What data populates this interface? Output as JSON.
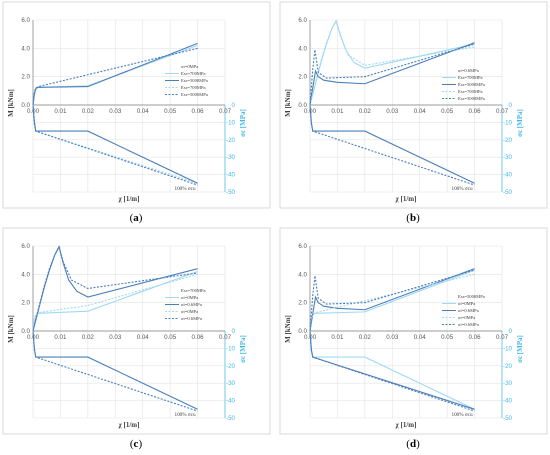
{
  "chart_data": [
    {
      "type": "line",
      "panel_label_open": "(",
      "panel_label": "a",
      "panel_label_close": ")",
      "xlabel": "χ [1/m]",
      "ylabel": "M [kNm]",
      "ylabel_right": "σc [MPa]",
      "xlim": [
        0,
        0.07
      ],
      "ylim": [
        0,
        6
      ],
      "ylim_right": [
        -50,
        0
      ],
      "x_ticks": [
        "0.00",
        "0.01",
        "0.02",
        "0.03",
        "0.04",
        "0.05",
        "0.06",
        "0.07"
      ],
      "y_ticks": [
        "0.0",
        "2.0",
        "4.0",
        "6.0"
      ],
      "y_right_ticks": [
        "0",
        "-10",
        "-20",
        "-30",
        "-40",
        "-50"
      ],
      "annotation": "100% σcu",
      "legend_title": "σt=0MPa",
      "series": [
        {
          "name": "Ess=700MPa",
          "color": "#9fd9f5",
          "dash": "",
          "axis": "left",
          "x": [
            0,
            0.0005,
            0.001,
            0.0015,
            0.002,
            0.02,
            0.06
          ],
          "y": [
            0,
            0.7,
            1.1,
            1.2,
            1.25,
            1.35,
            4.2
          ]
        },
        {
          "name": "Ess=5000MPa",
          "color": "#4a7ebb",
          "dash": "",
          "axis": "left",
          "x": [
            0,
            0.0005,
            0.001,
            0.0015,
            0.002,
            0.02,
            0.06
          ],
          "y": [
            0,
            0.8,
            1.15,
            1.22,
            1.25,
            1.3,
            4.35
          ]
        },
        {
          "name": "Ess=700MPa",
          "color": "#9fd9f5",
          "dash": "2,1.5",
          "axis": "right",
          "x": [
            0,
            0.001,
            0.06
          ],
          "y": [
            -0.5,
            -15,
            -45
          ]
        },
        {
          "name": "Ess=5000MPa",
          "color": "#4a7ebb",
          "dash": "2,1.5",
          "axis": "left",
          "x": [
            0,
            0.0005,
            0.001,
            0.002,
            0.06
          ],
          "y": [
            0,
            0.9,
            1.2,
            1.3,
            4.0
          ]
        },
        {
          "name": "",
          "color": "#4a7ebb",
          "dash": "",
          "axis": "right",
          "x": [
            0,
            0.0005,
            0.001,
            0.02,
            0.06
          ],
          "y": [
            -0.3,
            -10,
            -15,
            -15,
            -45
          ]
        },
        {
          "name": "",
          "color": "#4a7ebb",
          "dash": "2,1.5",
          "axis": "right",
          "x": [
            0,
            0.0005,
            0.001,
            0.06
          ],
          "y": [
            -0.3,
            -11,
            -15,
            -46
          ]
        }
      ]
    },
    {
      "type": "line",
      "panel_label_open": "(",
      "panel_label": "b",
      "panel_label_close": ")",
      "xlabel": "χ [1/m]",
      "ylabel": "M [kNm]",
      "ylabel_right": "σc [MPa]",
      "xlim": [
        0,
        0.07
      ],
      "ylim": [
        0,
        6
      ],
      "ylim_right": [
        -50,
        0
      ],
      "x_ticks": [
        "0.00",
        "0.01",
        "0.02",
        "0.03",
        "0.04",
        "0.05",
        "0.06",
        "0.07"
      ],
      "y_ticks": [
        "0.0",
        "2.0",
        "4.0",
        "6.0"
      ],
      "y_right_ticks": [
        "0",
        "-10",
        "-20",
        "-30",
        "-40",
        "-50"
      ],
      "annotation": "100% σcu",
      "legend_title": "σt=0.6MPa",
      "series": [
        {
          "name": "Ess=700MPa",
          "color": "#9fd9f5",
          "dash": "",
          "axis": "left",
          "x": [
            0,
            0.002,
            0.004,
            0.006,
            0.008,
            0.0095,
            0.011,
            0.013,
            0.016,
            0.02,
            0.06
          ],
          "y": [
            0,
            1.5,
            3.0,
            4.3,
            5.4,
            5.95,
            5.0,
            3.9,
            3.0,
            2.6,
            4.3
          ]
        },
        {
          "name": "Ess=5000MPa",
          "color": "#4a7ebb",
          "dash": "",
          "axis": "left",
          "x": [
            0,
            0.001,
            0.002,
            0.003,
            0.005,
            0.01,
            0.02,
            0.06
          ],
          "y": [
            0,
            1.2,
            2.4,
            2.0,
            1.75,
            1.6,
            1.5,
            4.4
          ]
        },
        {
          "name": "Ess=700MPa",
          "color": "#9fd9f5",
          "dash": "2,1.5",
          "axis": "left",
          "x": [
            0,
            0.002,
            0.004,
            0.006,
            0.008,
            0.0095,
            0.011,
            0.014,
            0.02,
            0.06
          ],
          "y": [
            0,
            1.6,
            3.1,
            4.4,
            5.4,
            5.9,
            4.9,
            3.5,
            2.8,
            4.1
          ]
        },
        {
          "name": "Ess=5000MPa",
          "color": "#4a7ebb",
          "dash": "2,1.5",
          "axis": "left",
          "x": [
            0,
            0.001,
            0.0018,
            0.003,
            0.006,
            0.02,
            0.06
          ],
          "y": [
            0,
            2.5,
            3.9,
            2.3,
            1.9,
            2.0,
            4.3
          ]
        },
        {
          "name": "",
          "color": "#4a7ebb",
          "dash": "",
          "axis": "right",
          "x": [
            0,
            0.0005,
            0.001,
            0.02,
            0.06
          ],
          "y": [
            -0.3,
            -10,
            -15,
            -15,
            -45
          ]
        },
        {
          "name": "",
          "color": "#4a7ebb",
          "dash": "2,1.5",
          "axis": "right",
          "x": [
            0,
            0.0005,
            0.001,
            0.06
          ],
          "y": [
            -0.3,
            -11,
            -15,
            -46
          ]
        }
      ]
    },
    {
      "type": "line",
      "panel_label_open": "(",
      "panel_label": "c",
      "panel_label_close": ")",
      "xlabel": "χ [1/m]",
      "ylabel": "M [kNm]",
      "ylabel_right": "σc [MPa]",
      "xlim": [
        0,
        0.07
      ],
      "ylim": [
        0,
        6
      ],
      "ylim_right": [
        -50,
        0
      ],
      "x_ticks": [
        "0.00",
        "0.01",
        "0.02",
        "0.03",
        "0.04",
        "0.05",
        "0.06",
        "0.07"
      ],
      "y_ticks": [
        "0.0",
        "2.0",
        "4.0",
        "6.0"
      ],
      "y_right_ticks": [
        "0",
        "-10",
        "-20",
        "-30",
        "-40",
        "-50"
      ],
      "annotation": "100% σcu",
      "legend_title": "Ess=700MPa",
      "series": [
        {
          "name": "σt=0MPa",
          "color": "#9fd9f5",
          "dash": "",
          "axis": "left",
          "x": [
            0,
            0.0005,
            0.001,
            0.002,
            0.02,
            0.06
          ],
          "y": [
            0,
            0.7,
            1.1,
            1.25,
            1.4,
            4.2
          ]
        },
        {
          "name": "σt=0.6MPa",
          "color": "#4a7ebb",
          "dash": "",
          "axis": "left",
          "x": [
            0,
            0.002,
            0.004,
            0.006,
            0.008,
            0.0095,
            0.011,
            0.013,
            0.016,
            0.02,
            0.06
          ],
          "y": [
            0,
            1.5,
            3.0,
            4.3,
            5.4,
            5.95,
            4.8,
            3.6,
            2.8,
            2.4,
            4.4
          ]
        },
        {
          "name": "σt=0MPa",
          "color": "#9fd9f5",
          "dash": "2,1.5",
          "axis": "left",
          "x": [
            0,
            0.0005,
            0.001,
            0.002,
            0.02,
            0.06
          ],
          "y": [
            0,
            0.8,
            1.15,
            1.3,
            1.8,
            4.0
          ]
        },
        {
          "name": "σt=0.6MPa",
          "color": "#4a7ebb",
          "dash": "2,1.5",
          "axis": "left",
          "x": [
            0,
            0.002,
            0.004,
            0.006,
            0.008,
            0.0095,
            0.011,
            0.014,
            0.02,
            0.06
          ],
          "y": [
            0,
            1.6,
            3.1,
            4.4,
            5.4,
            5.9,
            4.9,
            3.6,
            3.0,
            4.1
          ]
        },
        {
          "name": "",
          "color": "#4a7ebb",
          "dash": "",
          "axis": "right",
          "x": [
            0,
            0.0005,
            0.001,
            0.02,
            0.06
          ],
          "y": [
            -0.3,
            -10,
            -15,
            -15,
            -45
          ]
        },
        {
          "name": "",
          "color": "#4a7ebb",
          "dash": "2,1.5",
          "axis": "right",
          "x": [
            0,
            0.0005,
            0.001,
            0.06
          ],
          "y": [
            -0.3,
            -11,
            -15,
            -46
          ]
        }
      ]
    },
    {
      "type": "line",
      "panel_label_open": "(",
      "panel_label": "d",
      "panel_label_close": ")",
      "xlabel": "χ [1/m]",
      "ylabel": "M [kNm]",
      "ylabel_right": "σc [MPa]",
      "xlim": [
        0,
        0.07
      ],
      "ylim": [
        0,
        6
      ],
      "ylim_right": [
        -50,
        0
      ],
      "x_ticks": [
        "0.00",
        "0.01",
        "0.02",
        "0.03",
        "0.04",
        "0.05",
        "0.06",
        "0.07"
      ],
      "y_ticks": [
        "0.0",
        "2.0",
        "4.0",
        "6.0"
      ],
      "y_right_ticks": [
        "0",
        "-10",
        "-20",
        "-30",
        "-40",
        "-50"
      ],
      "annotation": "100% σcu",
      "legend_title": "Ess=5000MPa",
      "series": [
        {
          "name": "σt=0MPa",
          "color": "#9fd9f5",
          "dash": "",
          "axis": "left",
          "x": [
            0,
            0.0005,
            0.001,
            0.002,
            0.02,
            0.06
          ],
          "y": [
            0,
            0.8,
            1.15,
            1.25,
            1.35,
            4.3
          ]
        },
        {
          "name": "σt=0.6MPa",
          "color": "#4a7ebb",
          "dash": "",
          "axis": "left",
          "x": [
            0,
            0.001,
            0.002,
            0.003,
            0.005,
            0.01,
            0.02,
            0.06
          ],
          "y": [
            0,
            1.2,
            2.4,
            2.0,
            1.75,
            1.6,
            1.5,
            4.4
          ]
        },
        {
          "name": "σt=0MPa",
          "color": "#9fd9f5",
          "dash": "2,1.5",
          "axis": "left",
          "x": [
            0,
            0.0005,
            0.001,
            0.002,
            0.06
          ],
          "y": [
            0,
            0.9,
            1.2,
            1.3,
            4.0
          ]
        },
        {
          "name": "σt=0.6MPa",
          "color": "#4a7ebb",
          "dash": "2,1.5",
          "axis": "left",
          "x": [
            0,
            0.001,
            0.0018,
            0.003,
            0.006,
            0.02,
            0.06
          ],
          "y": [
            0,
            2.5,
            3.9,
            2.3,
            1.9,
            2.0,
            4.3
          ]
        },
        {
          "name": "",
          "color": "#9fd9f5",
          "dash": "",
          "axis": "right",
          "x": [
            0,
            0.0005,
            0.001,
            0.02,
            0.06
          ],
          "y": [
            -0.3,
            -10,
            -15,
            -15,
            -45
          ]
        },
        {
          "name": "",
          "color": "#4a7ebb",
          "dash": "",
          "axis": "right",
          "x": [
            0,
            0.0005,
            0.001,
            0.06
          ],
          "y": [
            -0.3,
            -11,
            -15,
            -45
          ]
        },
        {
          "name": "",
          "color": "#4a7ebb",
          "dash": "2,1.5",
          "axis": "right",
          "x": [
            0,
            0.0005,
            0.001,
            0.06
          ],
          "y": [
            -0.3,
            -11,
            -15,
            -46
          ]
        }
      ]
    }
  ]
}
